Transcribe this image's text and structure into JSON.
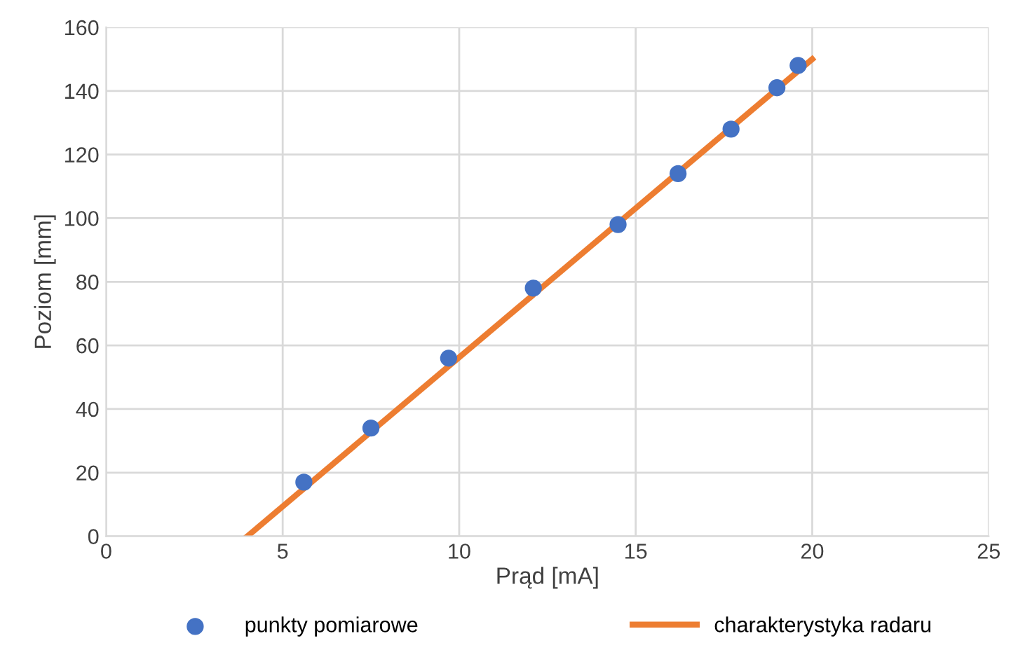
{
  "chart_data": {
    "type": "scatter",
    "xlabel": "Prąd [mA]",
    "ylabel": "Poziom [mm]",
    "xlim": [
      0,
      25
    ],
    "xticks": [
      0,
      5,
      10,
      15,
      20,
      25
    ],
    "ylim": [
      0,
      160
    ],
    "yticks": [
      0,
      20,
      40,
      60,
      80,
      100,
      120,
      140,
      160
    ],
    "grid": true,
    "legend": "bottom",
    "series": [
      {
        "name": "punkty pomiarowe",
        "color": "#4472c4",
        "marker": "circle",
        "x": [
          5.6,
          7.5,
          9.7,
          12.1,
          14.5,
          16.2,
          17.7,
          19.0,
          19.6
        ],
        "values": [
          17,
          34,
          56,
          78,
          98,
          114,
          128,
          141,
          148
        ]
      },
      {
        "name": "charakterystyka radaru",
        "type": "line",
        "color": "#ed7d31",
        "marker": "none",
        "line_style": "solid",
        "x": [
          4,
          20
        ],
        "values": [
          0,
          150
        ]
      }
    ]
  }
}
